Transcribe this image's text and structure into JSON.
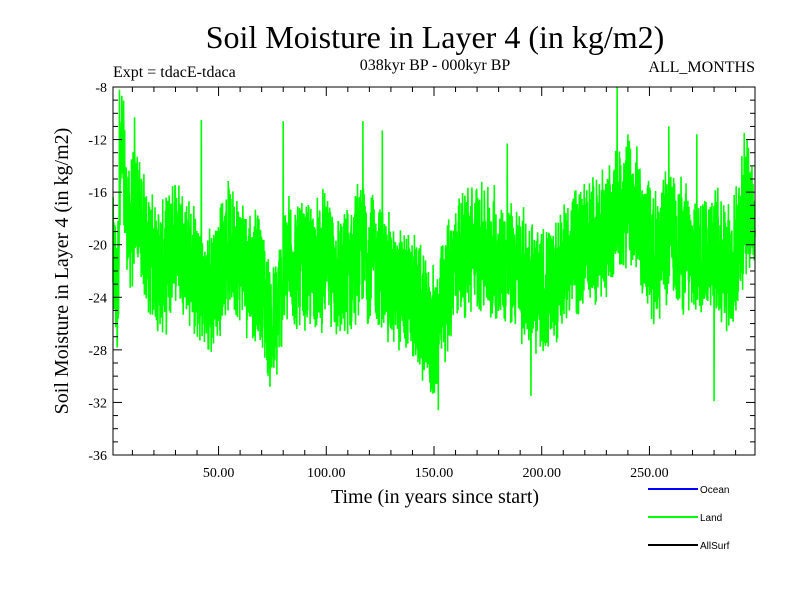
{
  "chart_data": {
    "type": "line",
    "title": "Soil Moisture in Layer 4 (in kg/m2)",
    "subtitle_left": "Expt = tdacE-tdaca",
    "subtitle_center": "038kyr BP - 000kyr BP",
    "subtitle_right": "ALL_MONTHS",
    "xlabel": "Time (in years since start)",
    "ylabel": "Soil Moisture in Layer 4 (in kg/m2)",
    "xlim": [
      1,
      299
    ],
    "ylim": [
      -36,
      -8
    ],
    "x_ticks": [
      50,
      100,
      150,
      200,
      250
    ],
    "x_tick_labels": [
      "50.00",
      "100.00",
      "150.00",
      "200.00",
      "250.00"
    ],
    "y_ticks": [
      -8,
      -12,
      -16,
      -20,
      -24,
      -28,
      -32,
      -36
    ],
    "y_tick_labels": [
      "-8",
      "-12",
      "-16",
      "-20",
      "-24",
      "-28",
      "-32",
      "-36"
    ],
    "legend_position": "bottom-right",
    "legend": [
      {
        "name": "Ocean",
        "color": "#0000ff"
      },
      {
        "name": "Land",
        "color": "#00ff00"
      },
      {
        "name": "AllSurf",
        "color": "#000000"
      }
    ],
    "series": [
      {
        "name": "Land",
        "color": "#00ff00",
        "sampling": "monthly",
        "x_start": 1,
        "x_end": 299,
        "anchors": [
          [
            1,
            -21
          ],
          [
            3,
            -24
          ],
          [
            5,
            -12
          ],
          [
            8,
            -19
          ],
          [
            12,
            -17
          ],
          [
            18,
            -21
          ],
          [
            25,
            -22
          ],
          [
            30,
            -19
          ],
          [
            38,
            -22
          ],
          [
            45,
            -24
          ],
          [
            55,
            -20
          ],
          [
            60,
            -21
          ],
          [
            70,
            -23
          ],
          [
            75,
            -27
          ],
          [
            82,
            -21
          ],
          [
            90,
            -22
          ],
          [
            100,
            -21
          ],
          [
            108,
            -23
          ],
          [
            115,
            -20
          ],
          [
            122,
            -21
          ],
          [
            130,
            -23
          ],
          [
            140,
            -24
          ],
          [
            150,
            -27
          ],
          [
            160,
            -21
          ],
          [
            170,
            -20
          ],
          [
            180,
            -21
          ],
          [
            190,
            -22
          ],
          [
            200,
            -24
          ],
          [
            205,
            -23
          ],
          [
            212,
            -21
          ],
          [
            220,
            -20
          ],
          [
            230,
            -19
          ],
          [
            238,
            -17
          ],
          [
            245,
            -18
          ],
          [
            252,
            -21
          ],
          [
            260,
            -19
          ],
          [
            270,
            -21
          ],
          [
            280,
            -20
          ],
          [
            288,
            -22
          ],
          [
            295,
            -17
          ],
          [
            299,
            -18
          ]
        ],
        "notable_extremes": [
          [
            4,
            -8.2
          ],
          [
            11,
            -10.3
          ],
          [
            42,
            -10.5
          ],
          [
            80,
            -10.6
          ],
          [
            117,
            -10.6
          ],
          [
            126,
            -11.3
          ],
          [
            152,
            -32.6
          ],
          [
            184,
            -12.3
          ],
          [
            195,
            -31.5
          ],
          [
            235,
            -7.9
          ],
          [
            240,
            -11.6
          ],
          [
            259,
            -11.0
          ],
          [
            272,
            -11.6
          ],
          [
            280,
            -31.9
          ],
          [
            294,
            -11.5
          ]
        ]
      },
      {
        "name": "Ocean",
        "color": "#0000ff",
        "values": []
      },
      {
        "name": "AllSurf",
        "color": "#000000",
        "values": []
      }
    ]
  }
}
